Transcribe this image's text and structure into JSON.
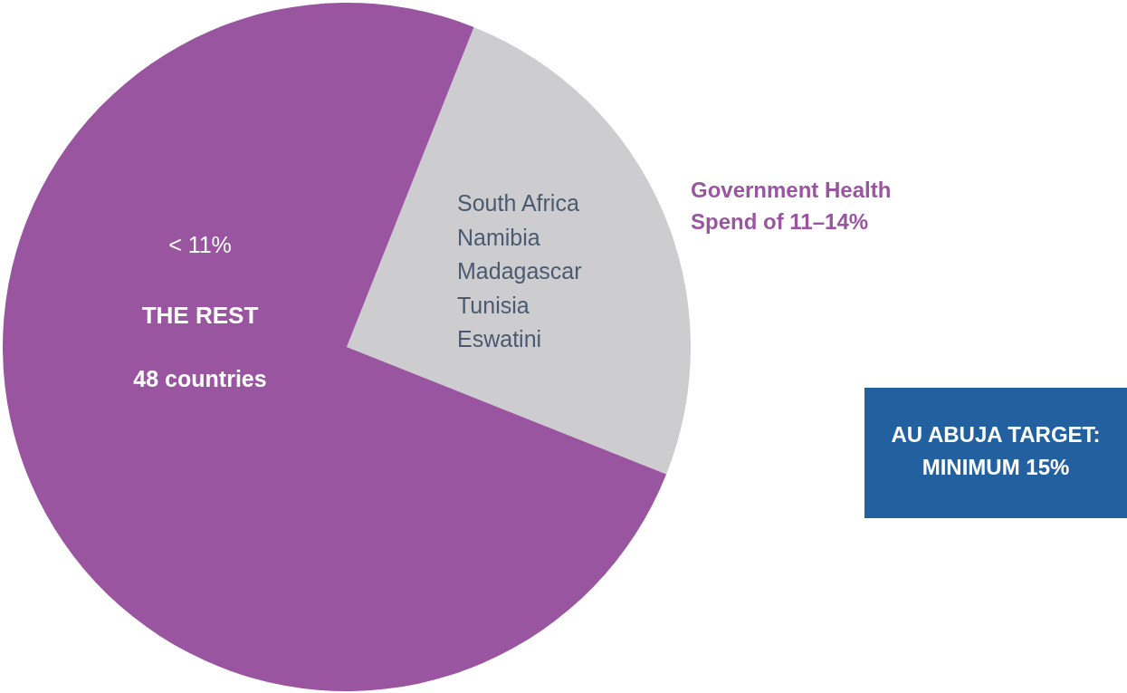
{
  "chart_data": {
    "type": "pie",
    "categories": [
      "Government Health Spend of 11–14%",
      "THE REST"
    ],
    "values": [
      25,
      75
    ],
    "colors": [
      "#cdcdd0",
      "#9a55a0"
    ],
    "legend": false,
    "annotations": [
      "< 11%",
      "48 countries",
      "South Africa",
      "Namibia",
      "Madagascar",
      "Tunisia",
      "Eswatini",
      "AU ABUJA TARGET: MINIMUM 15%"
    ]
  }
}
